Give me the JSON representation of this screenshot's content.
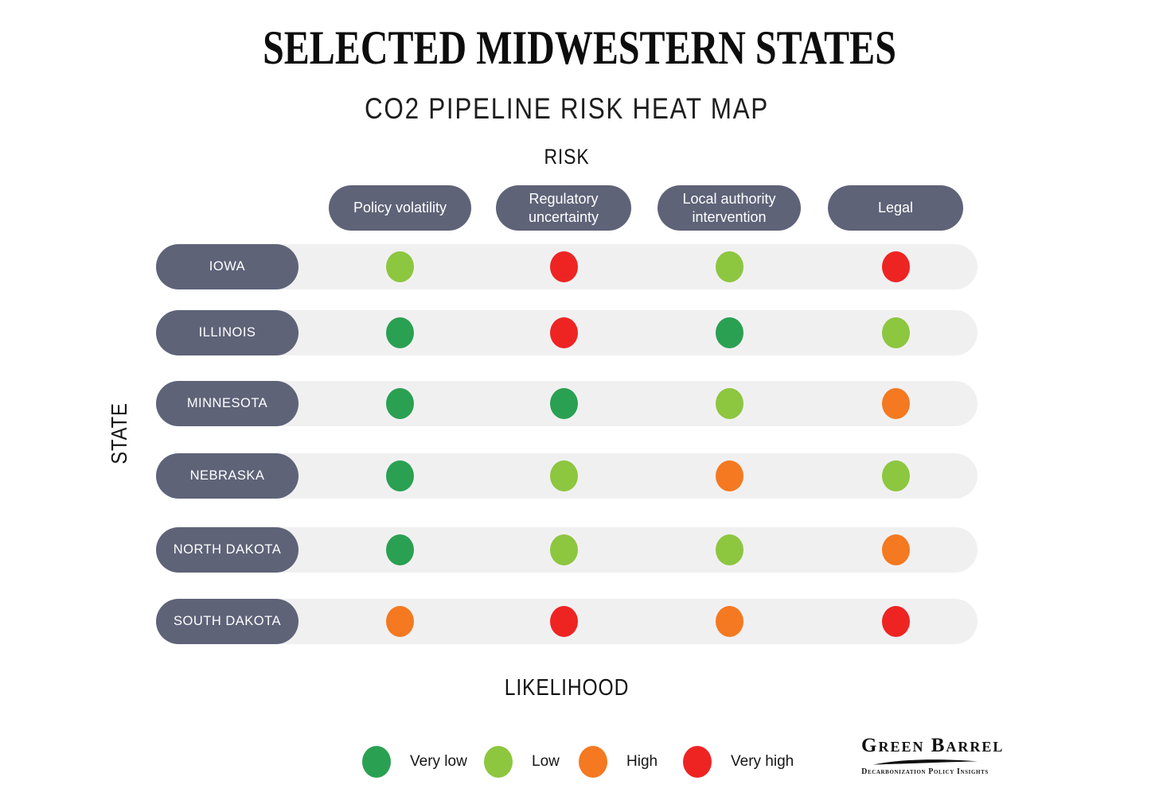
{
  "chart_data": {
    "type": "heatmap",
    "title": "SELECTED MIDWESTERN STATES",
    "subtitle": "CO2 PIPELINE RISK HEAT MAP",
    "column_axis_label": "RISK",
    "row_axis_label": "STATE",
    "value_axis_label": "LIKELIHOOD",
    "columns": [
      "Policy volatility",
      "Regulatory uncertainty",
      "Local authority intervention",
      "Legal"
    ],
    "rows": [
      "IOWA",
      "ILLINOIS",
      "MINNESOTA",
      "NEBRASKA",
      "NORTH DAKOTA",
      "SOUTH DAKOTA"
    ],
    "values": [
      [
        "Low",
        "Very high",
        "Low",
        "Very high"
      ],
      [
        "Very low",
        "Very high",
        "Very low",
        "Low"
      ],
      [
        "Very low",
        "Very low",
        "Low",
        "High"
      ],
      [
        "Very low",
        "Low",
        "High",
        "Low"
      ],
      [
        "Very low",
        "Low",
        "Low",
        "High"
      ],
      [
        "High",
        "Very high",
        "High",
        "Very high"
      ]
    ],
    "scale": [
      {
        "label": "Very low",
        "color": "#2aa052"
      },
      {
        "label": "Low",
        "color": "#8dc63f"
      },
      {
        "label": "High",
        "color": "#f47920"
      },
      {
        "label": "Very high",
        "color": "#ee2423"
      }
    ],
    "legend_position": "bottom",
    "grid": false
  },
  "colors": {
    "header_pill": "#5e6378",
    "pill_text": "#ffffff",
    "row_background": "#f1f0f1"
  },
  "logo": {
    "wordmark": "Green Barrel",
    "tagline": "Decarbonization Policy Insights"
  }
}
